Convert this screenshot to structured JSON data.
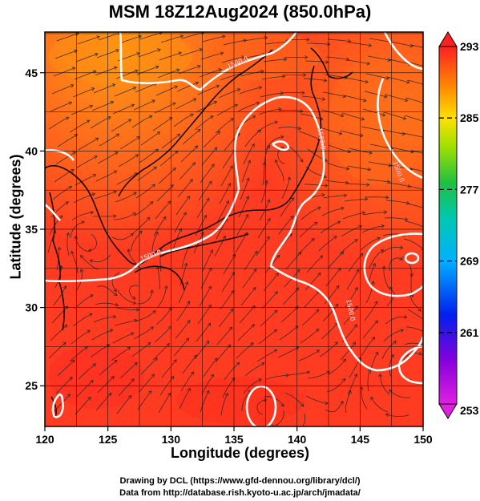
{
  "title": "MSM 18Z12Aug2024 (850.0hPa)",
  "xaxis": {
    "label": "Longitude (degrees)",
    "range": [
      120,
      150
    ],
    "ticks": [
      120,
      125,
      130,
      135,
      140,
      145,
      150
    ]
  },
  "yaxis": {
    "label": "Latitude  (degrees)",
    "range": [
      22.4,
      47.6
    ],
    "ticks": [
      25,
      30,
      35,
      40,
      45
    ]
  },
  "colorbar": {
    "range": [
      253,
      293
    ],
    "ticks": [
      253,
      261,
      269,
      277,
      285,
      293
    ],
    "unit": ""
  },
  "contour_label": "1500.0",
  "footer": {
    "line1": "Drawing by DCL (https://www.gfd-dennou.org/library/dcl/)",
    "line2": "Data from http://database.rish.kyoto-u.ac.jp/arch/jmadata/"
  },
  "colors": {
    "field_main": "#ff3a1f",
    "field_warm": "#ff5a1c",
    "field_hot": "#ff8a10",
    "contour": "#ffffff",
    "coast": "#1a0000"
  }
}
